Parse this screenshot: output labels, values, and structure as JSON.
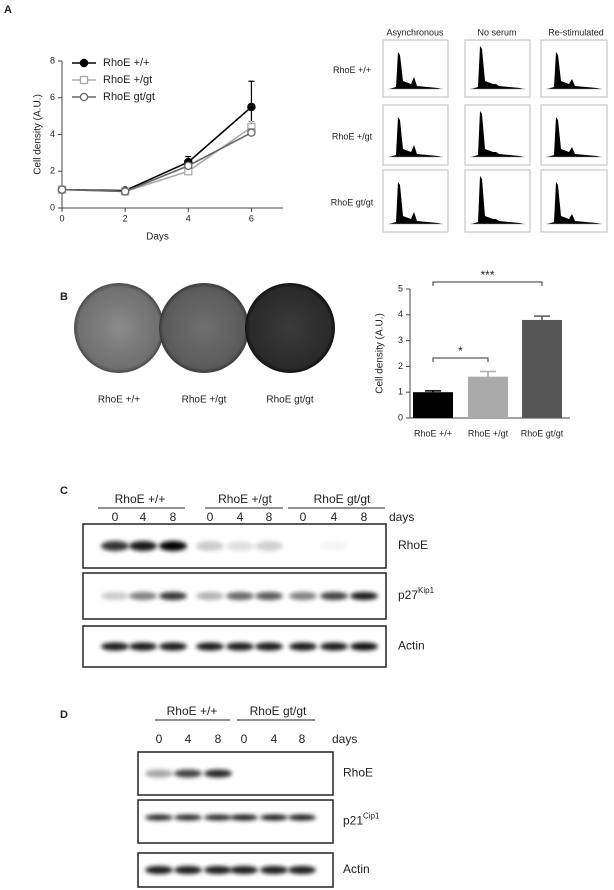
{
  "panel_labels": [
    "A",
    "B",
    "C",
    "D"
  ],
  "chart_data": [
    {
      "type": "line",
      "x": [
        0,
        2,
        4,
        6
      ],
      "xlim": [
        0,
        7
      ],
      "xticks": [
        0,
        2,
        4,
        6
      ],
      "ylim": [
        0,
        8
      ],
      "yticks": [
        0,
        2,
        4,
        6,
        8
      ],
      "xlabel": "Days",
      "ylabel": "Cell density (A.U.)",
      "legend": "upper left",
      "series": [
        {
          "name": "RhoE +/+",
          "color": "#000000",
          "marker": "circle-filled",
          "values": [
            1,
            0.95,
            2.5,
            5.5
          ],
          "errors": [
            0.05,
            0.05,
            0.3,
            1.4
          ]
        },
        {
          "name": "RhoE +/gt",
          "color": "#aaaaaa",
          "marker": "square-open",
          "values": [
            1,
            0.9,
            2.0,
            4.4
          ],
          "errors": [
            0.05,
            0.05,
            0.1,
            0.3
          ]
        },
        {
          "name": "RhoE gt/gt",
          "color": "#666666",
          "marker": "circle-open",
          "values": [
            1,
            0.9,
            2.3,
            4.1
          ],
          "errors": [
            0.05,
            0.05,
            0.15,
            0.2
          ]
        }
      ]
    },
    {
      "type": "bar",
      "categories": [
        "RhoE +/+",
        "RhoE +/gt",
        "RhoE gt/gt"
      ],
      "values": [
        1.0,
        1.6,
        3.8
      ],
      "errors": [
        0.05,
        0.2,
        0.15
      ],
      "colors": [
        "#000000",
        "#aaaaaa",
        "#555555"
      ],
      "ylim": [
        0,
        5
      ],
      "yticks": [
        0,
        1,
        2,
        3,
        4,
        5
      ],
      "ylabel": "Cell density (A.U.)",
      "annotations": [
        "*",
        "***"
      ]
    }
  ],
  "flow_cytometry": {
    "columns": [
      "Asynchronous",
      "No serum",
      "Re-stimulated"
    ],
    "rows": [
      "RhoE +/+",
      "RhoE +/gt",
      "RhoE gt/gt"
    ]
  },
  "colonies": {
    "labels": [
      "RhoE +/+",
      "RhoE +/gt",
      "RhoE gt/gt"
    ]
  },
  "blot_c": {
    "groups": [
      "RhoE +/+",
      "RhoE +/gt",
      "RhoE gt/gt"
    ],
    "lanes": [
      "0",
      "4",
      "8",
      "0",
      "4",
      "8",
      "0",
      "4",
      "8"
    ],
    "lane_unit": "days",
    "rows": [
      {
        "name": "RhoE"
      },
      {
        "name": "p27",
        "sup": "Kip1"
      },
      {
        "name": "Actin"
      }
    ]
  },
  "blot_d": {
    "groups": [
      "RhoE +/+",
      "RhoE gt/gt"
    ],
    "lanes": [
      "0",
      "4",
      "8",
      "0",
      "4",
      "8"
    ],
    "lane_unit": "days",
    "rows": [
      {
        "name": "RhoE"
      },
      {
        "name": "p21",
        "sup": "Cip1"
      },
      {
        "name": "Actin"
      }
    ]
  }
}
